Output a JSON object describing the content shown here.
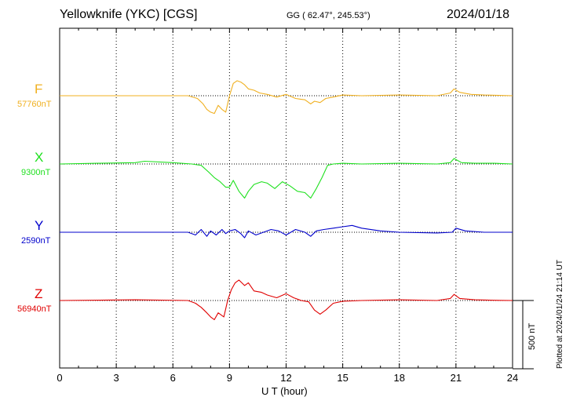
{
  "header": {
    "station": "Yellowknife (YKC)  [CGS]",
    "coords": "GG ( 62.47°, 245.53°)",
    "date": "2024/01/18"
  },
  "footer": {
    "plotted": "Plotted at 2024/01/24 21:14 UT",
    "scale": "500 nT"
  },
  "colors": {
    "F": "#f0b020",
    "X": "#1ee01e",
    "Y": "#0000cc",
    "Z": "#e00000"
  },
  "chart_data": {
    "type": "line",
    "xlabel": "U T (hour)",
    "xlim": [
      0,
      24
    ],
    "xticks": [
      0,
      3,
      6,
      9,
      12,
      15,
      18,
      21,
      24
    ],
    "scale_bar_nT": 500,
    "grid": true,
    "series": [
      {
        "name": "F",
        "baseline_label": "57760nT",
        "baseline": 57760,
        "x": [
          0,
          6.8,
          7.3,
          7.6,
          7.8,
          8.0,
          8.2,
          8.4,
          8.6,
          8.8,
          9.0,
          9.2,
          9.4,
          9.6,
          9.8,
          10.0,
          10.3,
          10.6,
          11.0,
          11.5,
          12.0,
          12.5,
          13.0,
          13.3,
          13.5,
          13.8,
          14.1,
          14.5,
          15.0,
          16.0,
          18.0,
          20.0,
          20.7,
          20.9,
          21.2,
          21.8,
          22.5,
          24
        ],
        "y": [
          57760,
          57760,
          57740,
          57700,
          57660,
          57640,
          57630,
          57690,
          57660,
          57640,
          57760,
          57850,
          57870,
          57860,
          57840,
          57810,
          57800,
          57780,
          57770,
          57750,
          57770,
          57740,
          57730,
          57700,
          57720,
          57710,
          57740,
          57750,
          57765,
          57760,
          57765,
          57760,
          57780,
          57810,
          57785,
          57770,
          57765,
          57760
        ]
      },
      {
        "name": "X",
        "baseline_label": "9300nT",
        "baseline": 9300,
        "x": [
          0,
          2.0,
          4.0,
          4.5,
          6.0,
          7.0,
          7.5,
          7.9,
          8.2,
          8.5,
          8.8,
          9.0,
          9.2,
          9.5,
          9.8,
          10.0,
          10.3,
          10.7,
          11.0,
          11.4,
          11.8,
          12.2,
          12.6,
          13.0,
          13.3,
          13.6,
          13.9,
          14.2,
          14.5,
          15.0,
          16.0,
          18.0,
          20.0,
          20.7,
          20.9,
          21.3,
          22.0,
          23.0,
          24
        ],
        "y": [
          9300,
          9305,
          9310,
          9320,
          9310,
          9300,
          9290,
          9240,
          9200,
          9170,
          9130,
          9130,
          9180,
          9100,
          9050,
          9100,
          9150,
          9170,
          9160,
          9120,
          9170,
          9140,
          9100,
          9090,
          9050,
          9120,
          9200,
          9290,
          9300,
          9305,
          9300,
          9305,
          9300,
          9310,
          9340,
          9310,
          9305,
          9305,
          9300
        ]
      },
      {
        "name": "Y",
        "baseline_label": "2590nT",
        "baseline": 2590,
        "x": [
          0,
          6.8,
          7.2,
          7.5,
          7.8,
          8.0,
          8.3,
          8.6,
          8.8,
          9.0,
          9.3,
          9.6,
          9.8,
          10.0,
          10.4,
          10.8,
          11.2,
          11.6,
          12.0,
          12.5,
          13.0,
          13.3,
          13.6,
          14.0,
          14.5,
          15.0,
          15.5,
          16.0,
          17.0,
          18.0,
          20.0,
          20.8,
          21.0,
          21.5,
          22.5,
          24
        ],
        "y": [
          2590,
          2590,
          2570,
          2610,
          2560,
          2600,
          2570,
          2610,
          2580,
          2600,
          2610,
          2580,
          2550,
          2600,
          2570,
          2590,
          2610,
          2600,
          2570,
          2610,
          2590,
          2560,
          2600,
          2610,
          2620,
          2630,
          2640,
          2620,
          2600,
          2590,
          2585,
          2590,
          2620,
          2600,
          2590,
          2590
        ]
      },
      {
        "name": "Z",
        "baseline_label": "56940nT",
        "baseline": 56940,
        "x": [
          0,
          4.0,
          6.8,
          7.2,
          7.5,
          7.8,
          8.0,
          8.2,
          8.4,
          8.7,
          8.9,
          9.1,
          9.3,
          9.5,
          9.8,
          10.0,
          10.3,
          10.7,
          11.0,
          11.5,
          12.0,
          12.4,
          12.8,
          13.2,
          13.5,
          13.8,
          14.1,
          14.5,
          15.0,
          16.0,
          18.0,
          20.0,
          20.7,
          20.9,
          21.2,
          22.0,
          23.0,
          24
        ],
        "y": [
          56940,
          56945,
          56940,
          56920,
          56890,
          56850,
          56820,
          56800,
          56850,
          56820,
          56940,
          57020,
          57070,
          57090,
          57050,
          57070,
          57010,
          57000,
          56980,
          56960,
          56990,
          56960,
          56940,
          56930,
          56870,
          56840,
          56870,
          56920,
          56935,
          56940,
          56945,
          56940,
          56955,
          56985,
          56955,
          56945,
          56942,
          56940
        ]
      }
    ]
  }
}
